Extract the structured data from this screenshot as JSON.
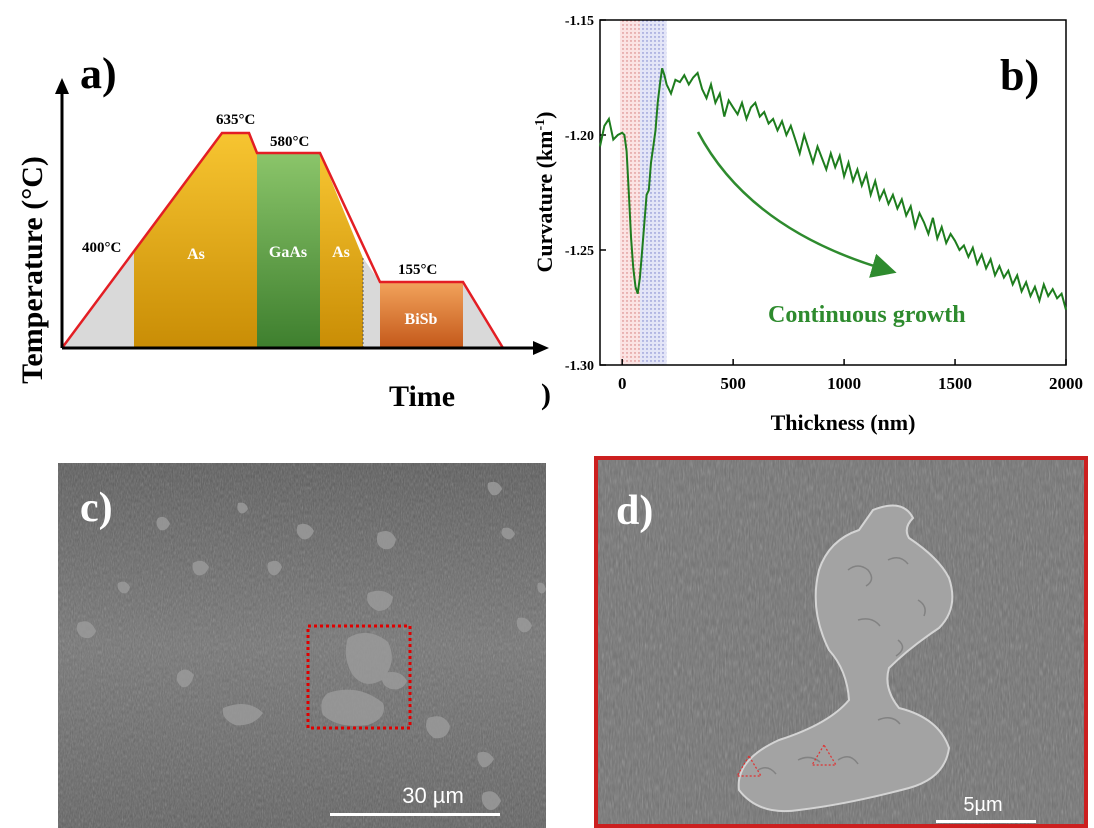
{
  "panel_a": {
    "label": "a)",
    "y_axis_label": "Temperature (°C)",
    "x_axis_label": "Time",
    "x_axis_label_tail": ")",
    "temperatures": [
      "400°C",
      "635°C",
      "580°C",
      "155°C"
    ],
    "regions": [
      "As",
      "GaAs",
      "As",
      "BiSb"
    ],
    "colors": {
      "profile": "#e31e24",
      "as": "#f2b705",
      "gaas": "#4e9a3a",
      "bisb": "#e0782a",
      "ramp": "#d8d8d8"
    }
  },
  "panel_b": {
    "label": "b)",
    "annotation": "Continuous growth",
    "annotation_color": "#2e8b2e"
  },
  "panel_c": {
    "label": "c)",
    "scale_bar": "30 µm"
  },
  "panel_d": {
    "label": "d)",
    "scale_bar": "5µm",
    "border_color": "#cc1f1f"
  },
  "chart_data": {
    "type": "line",
    "title": "",
    "xlabel": "Thickness (nm)",
    "ylabel": "Curvature (km-1)",
    "xlim": [
      -100,
      2000
    ],
    "ylim": [
      -1.3,
      -1.15
    ],
    "xticks": [
      0,
      500,
      1000,
      1500,
      2000
    ],
    "yticks": [
      -1.3,
      -1.25,
      -1.2,
      -1.15
    ],
    "ytick_labels": [
      "-1.30",
      "-1.25",
      "-1.20",
      "-1.15"
    ],
    "series": [
      {
        "color": "#1e7d1e",
        "x": [
          -100,
          -80,
          -60,
          -40,
          -20,
          0,
          10,
          20,
          30,
          40,
          50,
          60,
          70,
          80,
          90,
          100,
          110,
          120,
          130,
          140,
          150,
          160,
          170,
          180,
          190,
          200,
          220,
          240,
          260,
          280,
          300,
          320,
          340,
          360,
          380,
          400,
          420,
          440,
          460,
          480,
          500,
          520,
          540,
          560,
          580,
          600,
          620,
          640,
          660,
          680,
          700,
          720,
          740,
          760,
          780,
          800,
          820,
          840,
          860,
          880,
          900,
          920,
          940,
          960,
          980,
          1000,
          1020,
          1040,
          1060,
          1080,
          1100,
          1120,
          1140,
          1160,
          1180,
          1200,
          1220,
          1240,
          1260,
          1280,
          1300,
          1320,
          1340,
          1360,
          1380,
          1400,
          1420,
          1440,
          1460,
          1480,
          1500,
          1520,
          1540,
          1560,
          1580,
          1600,
          1620,
          1640,
          1660,
          1680,
          1700,
          1720,
          1740,
          1760,
          1780,
          1800,
          1820,
          1840,
          1860,
          1880,
          1900,
          1920,
          1940,
          1960,
          1980,
          2000
        ],
        "y": [
          -1.205,
          -1.196,
          -1.193,
          -1.202,
          -1.2,
          -1.199,
          -1.2,
          -1.207,
          -1.225,
          -1.245,
          -1.258,
          -1.266,
          -1.269,
          -1.262,
          -1.25,
          -1.238,
          -1.226,
          -1.224,
          -1.212,
          -1.205,
          -1.198,
          -1.186,
          -1.178,
          -1.171,
          -1.174,
          -1.178,
          -1.182,
          -1.176,
          -1.177,
          -1.174,
          -1.178,
          -1.175,
          -1.173,
          -1.18,
          -1.184,
          -1.178,
          -1.186,
          -1.182,
          -1.192,
          -1.185,
          -1.188,
          -1.191,
          -1.186,
          -1.193,
          -1.188,
          -1.186,
          -1.192,
          -1.19,
          -1.195,
          -1.193,
          -1.198,
          -1.194,
          -1.2,
          -1.196,
          -1.202,
          -1.208,
          -1.2,
          -1.206,
          -1.212,
          -1.205,
          -1.21,
          -1.215,
          -1.208,
          -1.214,
          -1.209,
          -1.218,
          -1.212,
          -1.22,
          -1.215,
          -1.222,
          -1.217,
          -1.226,
          -1.22,
          -1.228,
          -1.224,
          -1.23,
          -1.226,
          -1.232,
          -1.228,
          -1.235,
          -1.231,
          -1.24,
          -1.234,
          -1.238,
          -1.243,
          -1.236,
          -1.245,
          -1.24,
          -1.247,
          -1.243,
          -1.246,
          -1.25,
          -1.248,
          -1.253,
          -1.249,
          -1.256,
          -1.252,
          -1.258,
          -1.254,
          -1.261,
          -1.257,
          -1.262,
          -1.259,
          -1.265,
          -1.261,
          -1.268,
          -1.264,
          -1.27,
          -1.266,
          -1.272,
          -1.265,
          -1.27,
          -1.267,
          -1.271,
          -1.269,
          -1.276
        ]
      }
    ],
    "shaded_bands": [
      {
        "x": [
          -10,
          80
        ],
        "color": "#f4c4c4",
        "pattern": "dotted"
      },
      {
        "x": [
          80,
          200
        ],
        "color": "#c4c8ee",
        "pattern": "dotted"
      }
    ],
    "grid": false
  }
}
